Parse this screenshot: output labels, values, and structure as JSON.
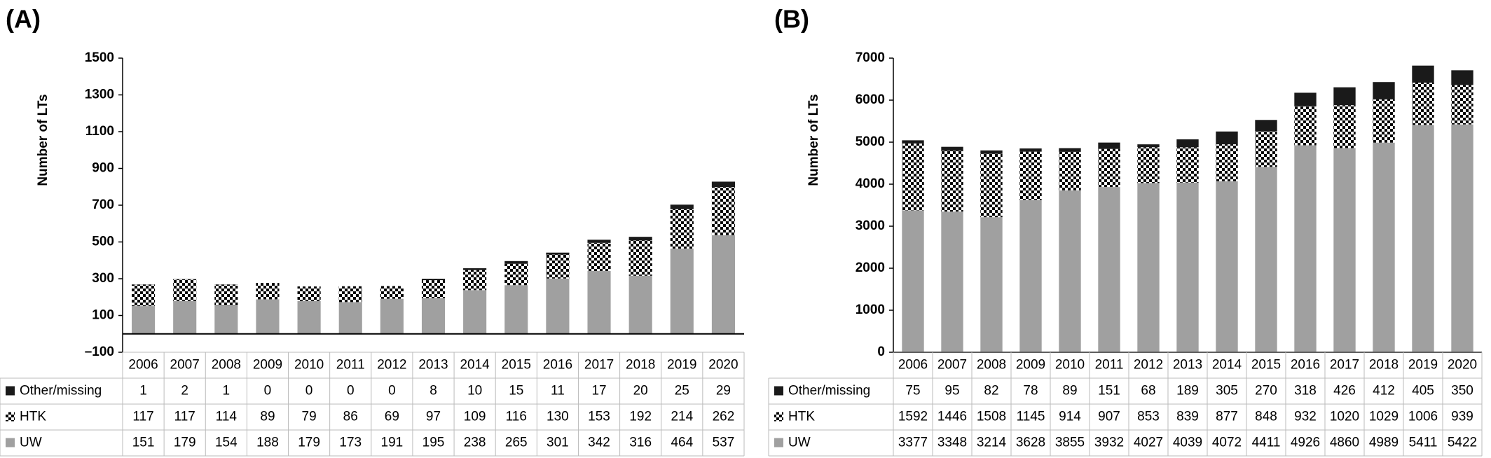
{
  "chart_data": [
    {
      "type": "bar",
      "stacked": true,
      "panel_label": "(A)",
      "y_label": "Number of LTs",
      "categories": [
        "2006",
        "2007",
        "2008",
        "2009",
        "2010",
        "2011",
        "2012",
        "2013",
        "2014",
        "2015",
        "2016",
        "2017",
        "2018",
        "2019",
        "2020"
      ],
      "series": [
        {
          "name": "UW",
          "color": "#a0a0a0",
          "values": [
            151,
            179,
            154,
            188,
            179,
            173,
            191,
            195,
            238,
            265,
            301,
            342,
            316,
            464,
            537
          ]
        },
        {
          "name": "HTK",
          "color": "#000000",
          "pattern": "checker",
          "values": [
            117,
            117,
            114,
            89,
            79,
            86,
            69,
            97,
            109,
            116,
            130,
            153,
            192,
            214,
            262
          ]
        },
        {
          "name": "Other/missing",
          "color": "#1a1a1a",
          "values": [
            1,
            2,
            1,
            0,
            0,
            0,
            0,
            8,
            10,
            15,
            11,
            17,
            20,
            25,
            29
          ]
        }
      ],
      "ylim": [
        -100,
        1500
      ],
      "yticks": [
        {
          "value": -100,
          "label": "–100"
        },
        100,
        300,
        500,
        700,
        900,
        1100,
        1300,
        1500
      ],
      "grid": false
    },
    {
      "type": "bar",
      "stacked": true,
      "panel_label": "(B)",
      "y_label": "Number of LTs",
      "categories": [
        "2006",
        "2007",
        "2008",
        "2009",
        "2010",
        "2011",
        "2012",
        "2013",
        "2014",
        "2015",
        "2016",
        "2017",
        "2018",
        "2019",
        "2020"
      ],
      "series": [
        {
          "name": "UW",
          "color": "#a0a0a0",
          "values": [
            3377,
            3348,
            3214,
            3628,
            3855,
            3932,
            4027,
            4039,
            4072,
            4411,
            4926,
            4860,
            4989,
            5411,
            5422
          ]
        },
        {
          "name": "HTK",
          "color": "#000000",
          "pattern": "checker",
          "values": [
            1592,
            1446,
            1508,
            1145,
            914,
            907,
            853,
            839,
            877,
            848,
            932,
            1020,
            1029,
            1006,
            939
          ]
        },
        {
          "name": "Other/missing",
          "color": "#1a1a1a",
          "values": [
            75,
            95,
            82,
            78,
            89,
            151,
            68,
            189,
            305,
            270,
            318,
            426,
            412,
            405,
            350
          ]
        }
      ],
      "ylim": [
        0,
        7000
      ],
      "yticks": [
        0,
        1000,
        2000,
        3000,
        4000,
        5000,
        6000,
        7000
      ],
      "grid": false
    }
  ]
}
